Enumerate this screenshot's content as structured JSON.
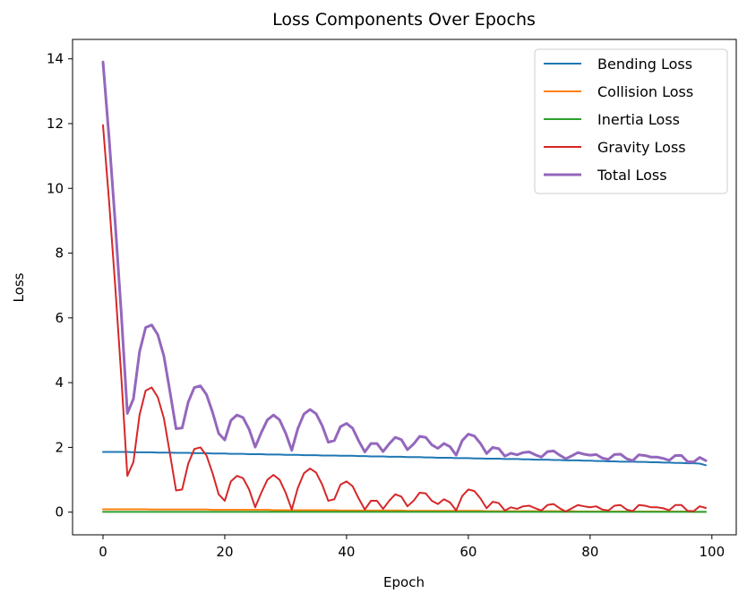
{
  "chart_data": {
    "type": "line",
    "title": "Loss Components Over Epochs",
    "xlabel": "Epoch",
    "ylabel": "Loss",
    "xlim": [
      -5,
      104
    ],
    "ylim": [
      -0.7,
      14.6
    ],
    "xticks": [
      "0",
      "20",
      "40",
      "60",
      "80",
      "100"
    ],
    "yticks": [
      "0",
      "2",
      "4",
      "6",
      "8",
      "10",
      "12",
      "14"
    ],
    "grid": false,
    "legend_position": "top-right",
    "x": [
      0,
      1,
      2,
      3,
      4,
      5,
      6,
      7,
      8,
      9,
      10,
      11,
      12,
      13,
      14,
      15,
      16,
      17,
      18,
      19,
      20,
      21,
      22,
      23,
      24,
      25,
      26,
      27,
      28,
      29,
      30,
      31,
      32,
      33,
      34,
      35,
      36,
      37,
      38,
      39,
      40,
      41,
      42,
      43,
      44,
      45,
      46,
      47,
      48,
      49,
      50,
      51,
      52,
      53,
      54,
      55,
      56,
      57,
      58,
      59,
      60,
      61,
      62,
      63,
      64,
      65,
      66,
      67,
      68,
      69,
      70,
      71,
      72,
      73,
      74,
      75,
      76,
      77,
      78,
      79,
      80,
      81,
      82,
      83,
      84,
      85,
      86,
      87,
      88,
      89,
      90,
      91,
      92,
      93,
      94,
      95,
      96,
      97,
      98,
      99
    ],
    "series": [
      {
        "name": "Bending Loss",
        "color": "#1f77b4",
        "values": [
          1.86,
          1.86,
          1.86,
          1.86,
          1.86,
          1.85,
          1.85,
          1.85,
          1.85,
          1.84,
          1.84,
          1.84,
          1.83,
          1.83,
          1.83,
          1.82,
          1.82,
          1.82,
          1.81,
          1.81,
          1.81,
          1.8,
          1.8,
          1.8,
          1.79,
          1.79,
          1.79,
          1.78,
          1.78,
          1.78,
          1.77,
          1.77,
          1.77,
          1.76,
          1.76,
          1.76,
          1.75,
          1.75,
          1.75,
          1.74,
          1.74,
          1.74,
          1.73,
          1.73,
          1.72,
          1.72,
          1.72,
          1.71,
          1.71,
          1.71,
          1.7,
          1.7,
          1.7,
          1.69,
          1.69,
          1.68,
          1.68,
          1.68,
          1.67,
          1.67,
          1.67,
          1.66,
          1.66,
          1.65,
          1.65,
          1.65,
          1.64,
          1.64,
          1.64,
          1.63,
          1.63,
          1.62,
          1.62,
          1.62,
          1.61,
          1.61,
          1.6,
          1.6,
          1.6,
          1.59,
          1.59,
          1.58,
          1.58,
          1.57,
          1.57,
          1.56,
          1.56,
          1.56,
          1.55,
          1.55,
          1.54,
          1.54,
          1.53,
          1.53,
          1.52,
          1.52,
          1.51,
          1.51,
          1.5,
          1.45
        ]
      },
      {
        "name": "Collision Loss",
        "color": "#ff7f0e",
        "values": [
          0.09,
          0.09,
          0.09,
          0.09,
          0.09,
          0.09,
          0.09,
          0.09,
          0.08,
          0.08,
          0.08,
          0.08,
          0.08,
          0.08,
          0.08,
          0.08,
          0.08,
          0.08,
          0.07,
          0.07,
          0.07,
          0.07,
          0.07,
          0.07,
          0.07,
          0.07,
          0.07,
          0.07,
          0.06,
          0.06,
          0.06,
          0.06,
          0.06,
          0.06,
          0.06,
          0.06,
          0.06,
          0.06,
          0.06,
          0.05,
          0.05,
          0.05,
          0.05,
          0.05,
          0.05,
          0.05,
          0.05,
          0.05,
          0.05,
          0.05,
          0.04,
          0.04,
          0.04,
          0.04,
          0.04,
          0.04,
          0.04,
          0.04,
          0.04,
          0.04,
          0.04,
          0.04,
          0.04,
          0.03,
          0.03,
          0.03,
          0.03,
          0.03,
          0.03,
          0.03,
          0.03,
          0.03,
          0.03,
          0.03,
          0.03,
          0.03,
          0.03,
          0.03,
          0.02,
          0.02,
          0.02,
          0.02,
          0.02,
          0.02,
          0.02,
          0.02,
          0.02,
          0.02,
          0.02,
          0.02,
          0.02,
          0.02,
          0.02,
          0.02,
          0.02,
          0.02,
          0.02,
          0.01,
          0.01,
          0.01
        ]
      },
      {
        "name": "Inertia Loss",
        "color": "#2ca02c",
        "values": [
          0.01,
          0.01,
          0.01,
          0.01,
          0.01,
          0.01,
          0.01,
          0.01,
          0.01,
          0.01,
          0.01,
          0.01,
          0.01,
          0.01,
          0.01,
          0.01,
          0.01,
          0.01,
          0.01,
          0.01,
          0.01,
          0.01,
          0.01,
          0.01,
          0.01,
          0.01,
          0.01,
          0.01,
          0.01,
          0.01,
          0.01,
          0.01,
          0.01,
          0.01,
          0.01,
          0.01,
          0.01,
          0.01,
          0.01,
          0.01,
          0.01,
          0.01,
          0.01,
          0.01,
          0.01,
          0.01,
          0.01,
          0.01,
          0.01,
          0.01,
          0.01,
          0.01,
          0.01,
          0.01,
          0.01,
          0.01,
          0.01,
          0.01,
          0.01,
          0.01,
          0.01,
          0.01,
          0.01,
          0.01,
          0.01,
          0.01,
          0.01,
          0.01,
          0.01,
          0.01,
          0.01,
          0.01,
          0.01,
          0.01,
          0.01,
          0.01,
          0.01,
          0.01,
          0.01,
          0.01,
          0.01,
          0.01,
          0.01,
          0.01,
          0.01,
          0.01,
          0.01,
          0.01,
          0.01,
          0.01,
          0.01,
          0.01,
          0.01,
          0.01,
          0.01,
          0.01,
          0.01,
          0.01,
          0.01,
          0.01
        ]
      },
      {
        "name": "Gravity Loss",
        "color": "#d62728",
        "values": [
          11.95,
          9.6,
          7.0,
          4.2,
          1.12,
          1.55,
          3.0,
          3.75,
          3.85,
          3.55,
          2.9,
          1.8,
          0.67,
          0.7,
          1.5,
          1.95,
          2.0,
          1.75,
          1.2,
          0.55,
          0.35,
          0.95,
          1.12,
          1.05,
          0.7,
          0.15,
          0.6,
          1.0,
          1.15,
          1.0,
          0.6,
          0.08,
          0.75,
          1.2,
          1.35,
          1.22,
          0.85,
          0.35,
          0.4,
          0.85,
          0.95,
          0.8,
          0.42,
          0.08,
          0.35,
          0.35,
          0.1,
          0.35,
          0.55,
          0.48,
          0.18,
          0.35,
          0.6,
          0.58,
          0.35,
          0.25,
          0.4,
          0.3,
          0.05,
          0.5,
          0.7,
          0.65,
          0.42,
          0.12,
          0.32,
          0.28,
          0.05,
          0.15,
          0.1,
          0.18,
          0.2,
          0.12,
          0.05,
          0.22,
          0.25,
          0.12,
          0.02,
          0.12,
          0.22,
          0.18,
          0.15,
          0.18,
          0.08,
          0.05,
          0.2,
          0.22,
          0.08,
          0.03,
          0.22,
          0.2,
          0.15,
          0.15,
          0.12,
          0.06,
          0.22,
          0.22,
          0.04,
          0.03,
          0.18,
          0.13
        ]
      },
      {
        "name": "Total Loss",
        "color": "#9467bd",
        "values": [
          13.9,
          11.55,
          8.95,
          6.15,
          3.05,
          3.5,
          4.95,
          5.7,
          5.78,
          5.48,
          4.82,
          3.72,
          2.58,
          2.6,
          3.4,
          3.85,
          3.9,
          3.63,
          3.08,
          2.43,
          2.23,
          2.83,
          3.0,
          2.92,
          2.56,
          2.01,
          2.46,
          2.85,
          3.0,
          2.85,
          2.44,
          1.91,
          2.58,
          3.03,
          3.17,
          3.04,
          2.67,
          2.16,
          2.21,
          2.64,
          2.74,
          2.59,
          2.2,
          1.86,
          2.12,
          2.12,
          1.87,
          2.11,
          2.31,
          2.24,
          1.93,
          2.1,
          2.34,
          2.31,
          2.08,
          1.97,
          2.12,
          2.02,
          1.76,
          2.21,
          2.41,
          2.35,
          2.12,
          1.81,
          2.0,
          1.96,
          1.73,
          1.82,
          1.77,
          1.84,
          1.86,
          1.77,
          1.7,
          1.87,
          1.89,
          1.76,
          1.65,
          1.74,
          1.84,
          1.79,
          1.76,
          1.78,
          1.67,
          1.63,
          1.78,
          1.79,
          1.65,
          1.59,
          1.77,
          1.75,
          1.7,
          1.7,
          1.66,
          1.6,
          1.75,
          1.75,
          1.56,
          1.55,
          1.69,
          1.59
        ]
      }
    ]
  }
}
